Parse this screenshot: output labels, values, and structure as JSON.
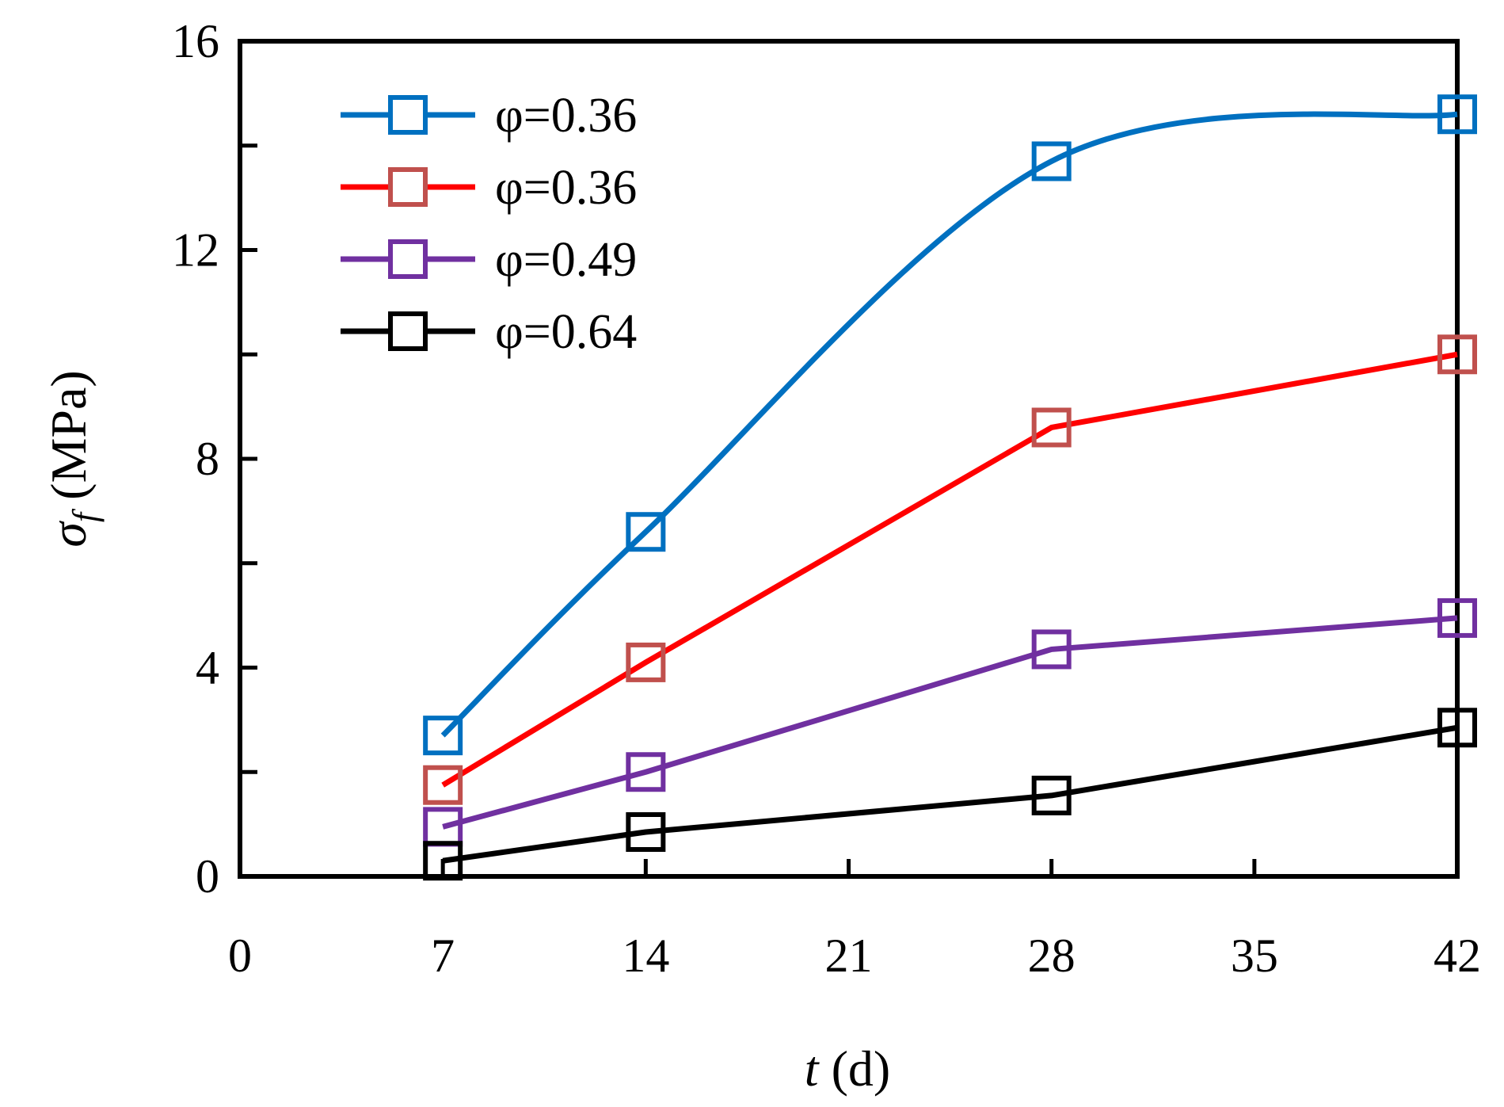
{
  "chart_data": {
    "type": "line",
    "title": "",
    "xlabel": {
      "var": "t",
      "unit": " (d)"
    },
    "ylabel": {
      "var": "σ",
      "sub": "f",
      "unit": " (MPa)"
    },
    "xlim": [
      0,
      42
    ],
    "ylim": [
      0,
      16
    ],
    "xticks": [
      0,
      7,
      14,
      21,
      28,
      35,
      42
    ],
    "yticks": [
      0,
      4,
      8,
      12,
      16
    ],
    "yminor": [
      2,
      6,
      10,
      14
    ],
    "grid": false,
    "legend_position": "top-left",
    "series": [
      {
        "name": "φ=0.36",
        "color": "#0070c0",
        "marker_color": "#0070c0",
        "smooth": true,
        "x": [
          7,
          14,
          28,
          42
        ],
        "y": [
          2.7,
          6.6,
          13.7,
          14.6
        ]
      },
      {
        "name": "φ=0.36",
        "color": "#ff0000",
        "marker_color": "#c0504d",
        "smooth": false,
        "x": [
          7,
          14,
          28,
          42
        ],
        "y": [
          1.75,
          4.1,
          8.6,
          10.0
        ]
      },
      {
        "name": "φ=0.49",
        "color": "#7030a0",
        "marker_color": "#7030a0",
        "smooth": false,
        "x": [
          7,
          14,
          28,
          42
        ],
        "y": [
          0.95,
          2.0,
          4.35,
          4.95
        ]
      },
      {
        "name": "φ=0.64",
        "color": "#000000",
        "marker_color": "#000000",
        "smooth": false,
        "x": [
          7,
          14,
          28,
          42
        ],
        "y": [
          0.3,
          0.85,
          1.55,
          2.85
        ]
      }
    ]
  }
}
